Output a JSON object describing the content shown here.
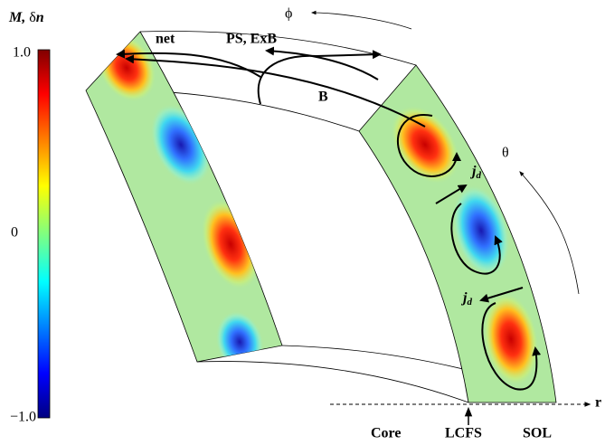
{
  "colorbar": {
    "label_m": "M,",
    "label_dn": "δ",
    "label_n": "n",
    "ticks": [
      "1.0",
      "0",
      "−1.0"
    ]
  },
  "labels": {
    "phi": "ϕ",
    "net": "net",
    "ps_exb": "PS, ExB",
    "b": "B",
    "theta": "θ",
    "jd_1": {
      "j": "j",
      "d": "d"
    },
    "jd_2": {
      "j": "j",
      "d": "d"
    },
    "r": "r",
    "core": "Core",
    "lcfs": "LCFS",
    "sol": "SOL"
  }
}
